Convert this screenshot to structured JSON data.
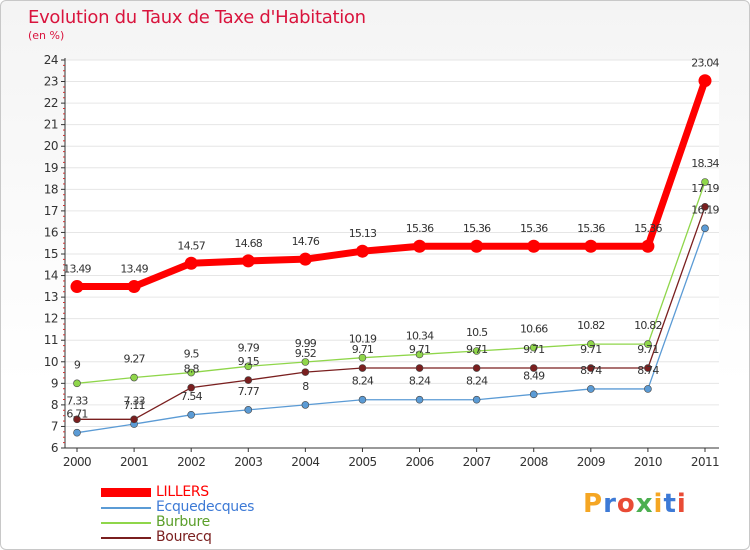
{
  "title": "Evolution du Taux de Taxe d'Habitation",
  "unit_label": "(en %)",
  "logo": {
    "text": "Proxiti",
    "letters": [
      "P",
      "r",
      "o",
      "x",
      "i",
      "t",
      "i"
    ],
    "colors": [
      "#f5a623",
      "#3d7ad6",
      "#e94b35",
      "#4caf50",
      "#f5a623",
      "#3d7ad6",
      "#e94b35"
    ]
  },
  "chart_data": {
    "type": "line",
    "title": "Evolution du Taux de Taxe d'Habitation",
    "ylabel": "(en %)",
    "xlabel": "",
    "ylim": [
      6,
      24
    ],
    "yticks": [
      6,
      7,
      8,
      9,
      10,
      11,
      12,
      13,
      14,
      15,
      16,
      17,
      18,
      19,
      20,
      21,
      22,
      23,
      24
    ],
    "x": [
      "2000",
      "2001",
      "2002",
      "2003",
      "2004",
      "2005",
      "2006",
      "2007",
      "2008",
      "2009",
      "2010",
      "2011"
    ],
    "series": [
      {
        "name": "LILLERS",
        "color": "#ff0000",
        "values": [
          13.49,
          13.49,
          14.57,
          14.68,
          14.76,
          15.13,
          15.36,
          15.36,
          15.36,
          15.36,
          15.36,
          23.04
        ],
        "labels": [
          "13.49",
          "13.49",
          "14.57",
          "14.68",
          "14.76",
          "15.13",
          "15.36",
          "15.36",
          "15.36",
          "15.36",
          "15.36",
          "23.04"
        ]
      },
      {
        "name": "Ecquedecques",
        "color": "#5b9bd5",
        "values": [
          6.71,
          7.11,
          7.54,
          7.77,
          8,
          8.24,
          8.24,
          8.24,
          8.49,
          8.74,
          8.74,
          16.19
        ],
        "labels": [
          "6.71",
          "7.11",
          "7.54",
          "7.77",
          "8",
          "8.24",
          "8.24",
          "8.24",
          "8.49",
          "8.74",
          "8.74",
          "16.19"
        ]
      },
      {
        "name": "Burbure",
        "color": "#8fd64a",
        "values": [
          9,
          9.27,
          9.5,
          9.79,
          9.99,
          10.19,
          10.34,
          10.5,
          10.66,
          10.82,
          10.82,
          18.34
        ],
        "labels": [
          "9",
          "9.27",
          "9.5",
          "9.79",
          "9.99",
          "10.19",
          "10.34",
          "10.5",
          "10.66",
          "10.82",
          "10.82",
          "18.34"
        ]
      },
      {
        "name": "Bourecq",
        "color": "#7a1f1f",
        "values": [
          7.33,
          7.33,
          8.8,
          9.15,
          9.52,
          9.71,
          9.71,
          9.71,
          9.71,
          9.71,
          9.71,
          17.19
        ],
        "labels": [
          "7.33",
          "7.33",
          "8.8",
          "9.15",
          "9.52",
          "9.71",
          "9.71",
          "9.71",
          "9.71",
          "9.71",
          "9.71",
          "17.19"
        ]
      }
    ],
    "legend": [
      "LILLERS",
      "Ecquedecques",
      "Burbure",
      "Bourecq"
    ],
    "legend_position": "bottom-left"
  }
}
